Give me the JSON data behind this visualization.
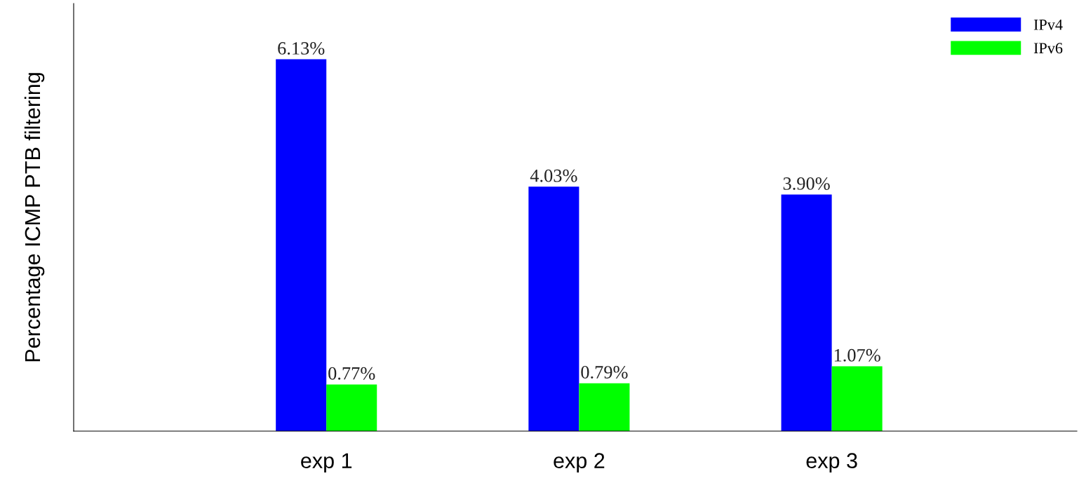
{
  "chart_data": {
    "type": "bar",
    "ylabel": "Percentage ICMP PTB filtering",
    "categories": [
      "exp 1",
      "exp 2",
      "exp 3"
    ],
    "series": [
      {
        "name": "IPv4",
        "color": "#0000ff",
        "values": [
          6.13,
          4.03,
          3.9
        ],
        "value_labels": [
          "6.13%",
          "4.03%",
          "3.90%"
        ]
      },
      {
        "name": "IPv6",
        "color": "#00ff00",
        "values": [
          0.77,
          0.79,
          1.07
        ],
        "value_labels": [
          "0.77%",
          "0.79%",
          "1.07%"
        ]
      }
    ],
    "ylim": [
      0,
      7.05
    ],
    "tick_labels": "x",
    "legend": "top right",
    "grid": false
  }
}
